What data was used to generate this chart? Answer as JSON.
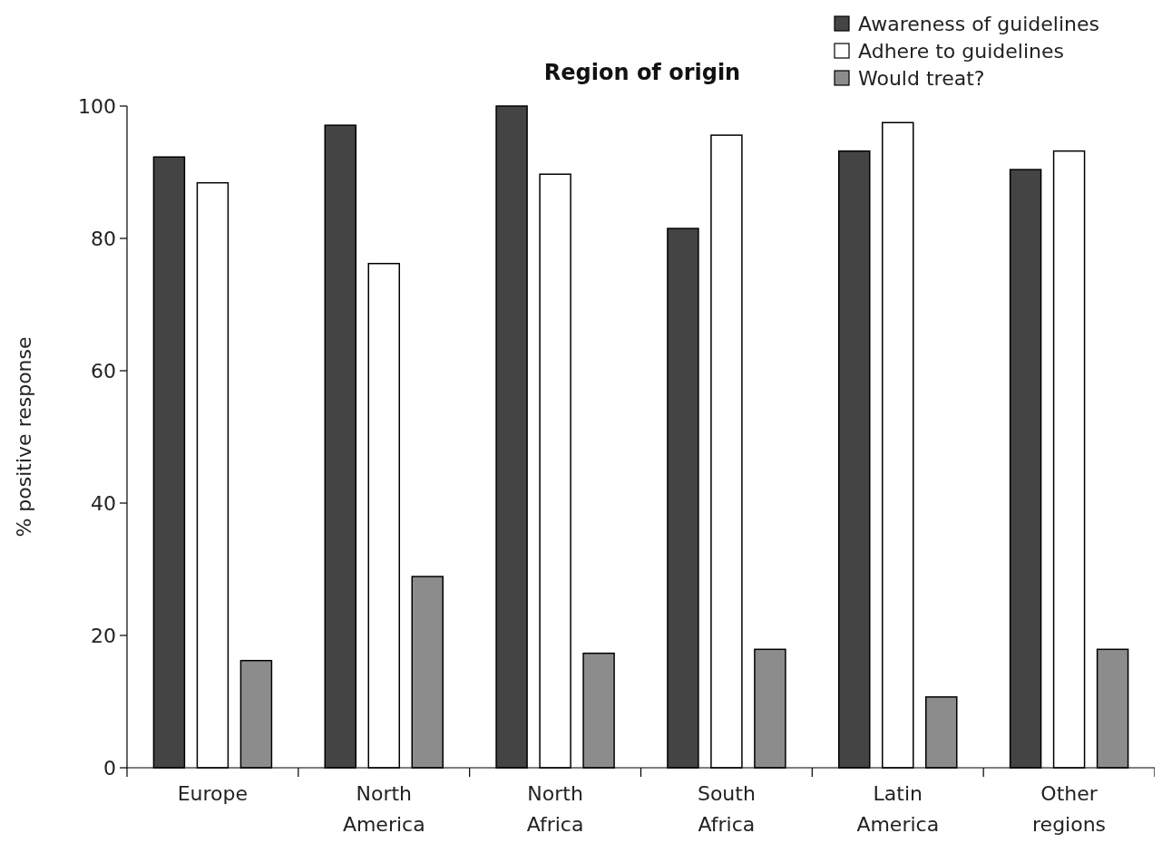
{
  "chart_data": {
    "type": "bar",
    "title": "Region of origin",
    "ylabel": "% positive response",
    "categories": [
      "Europe",
      "North America",
      "North Africa",
      "South Africa",
      "Latin America",
      "Other regions"
    ],
    "series": [
      {
        "name": "Awareness of guidelines",
        "color": "#444444",
        "values": [
          92.3,
          97.1,
          100,
          81.5,
          93.2,
          90.4
        ]
      },
      {
        "name": "Adhere to guidelines",
        "color": "#ffffff",
        "values": [
          88.4,
          76.2,
          89.7,
          95.6,
          97.5,
          93.2
        ]
      },
      {
        "name": "Would treat?",
        "color": "#8c8c8c",
        "values": [
          16.2,
          28.9,
          17.3,
          17.9,
          10.7,
          17.9
        ]
      }
    ],
    "ylim": [
      0,
      100
    ],
    "yticks": [
      0,
      20,
      40,
      60,
      80,
      100
    ],
    "grid": false,
    "legend": "top right"
  }
}
